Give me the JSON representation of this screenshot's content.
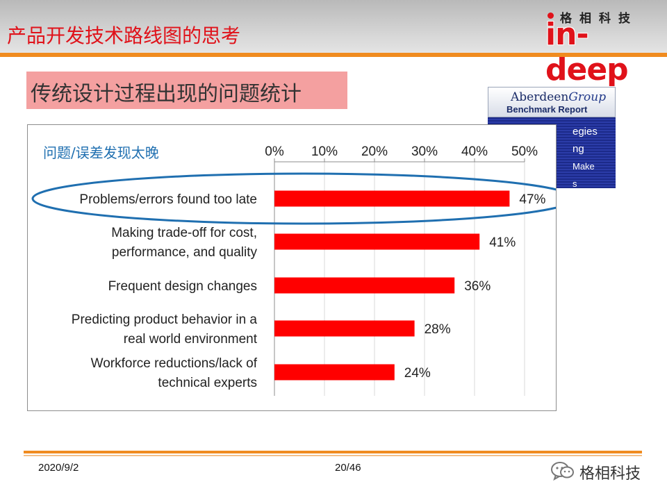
{
  "header": {
    "title": "产品开发技术路线图的思考",
    "logo_cn": "格相科技",
    "logo_en": "in-deep"
  },
  "subtitle": "传统设计过程出现的问题统计",
  "aberdeen": {
    "name": "Aberdeen",
    "group": "Group",
    "sub": "Benchmark Report",
    "fragments": [
      "egies",
      "ng",
      "Make",
      "s"
    ]
  },
  "chart_data": {
    "type": "bar",
    "orientation": "horizontal",
    "title": "问题/误差发现太晚",
    "categories": [
      "Problems/errors found too late",
      "Making trade-off for cost,\nperformance, and quality",
      "Frequent design changes",
      "Predicting product behavior in a\nreal world environment",
      "Workforce reductions/lack of\ntechnical experts"
    ],
    "values": [
      47,
      41,
      36,
      28,
      24
    ],
    "value_labels": [
      "47%",
      "41%",
      "36%",
      "28%",
      "24%"
    ],
    "xlim": [
      0,
      50
    ],
    "ticks": [
      0,
      10,
      20,
      30,
      40,
      50
    ],
    "tick_labels": [
      "0%",
      "10%",
      "20%",
      "30%",
      "40%",
      "50%"
    ],
    "axis_position": "top",
    "grid": true,
    "bar_color": "#ff0000",
    "highlight_color": "#1f6fb0",
    "highlight_index": 0
  },
  "footer": {
    "date": "2020/9/2",
    "page": "20/46",
    "brand": "格相科技"
  },
  "colors": {
    "accent": "#e0121a",
    "rule": "#f08b1f",
    "subtitle_bg": "#f4a0a0"
  }
}
